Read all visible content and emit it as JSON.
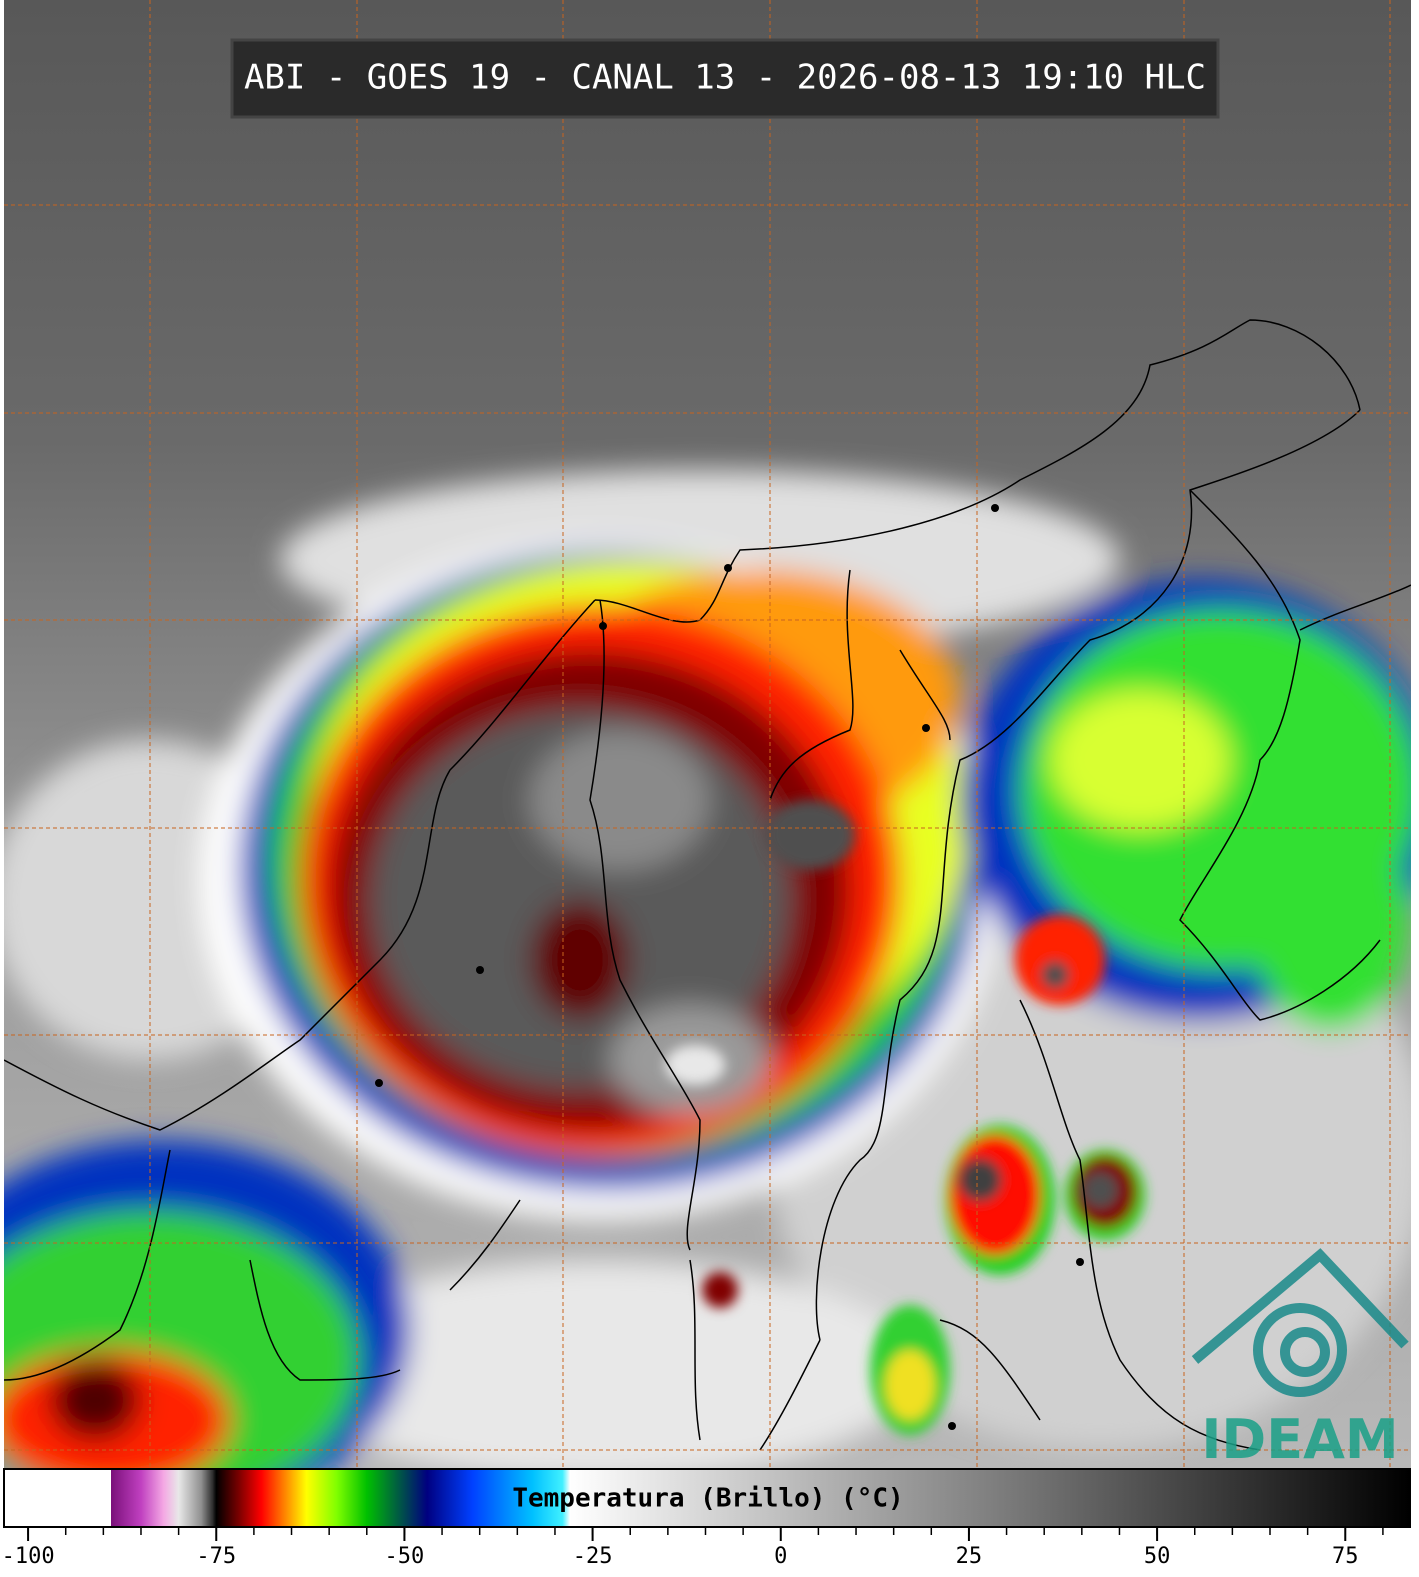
{
  "header": {
    "title": "ABI - GOES 19 - CANAL 13 - 2026-08-13 19:10 HLC"
  },
  "logo": {
    "text": "IDEAM"
  },
  "colorbar": {
    "label": "Temperatura (Brillo) (°C)",
    "lim": [
      -103.2,
      83.6
    ],
    "ticks": [
      -100,
      -75,
      -50,
      -25,
      0,
      25,
      50,
      75
    ],
    "minor_step": 5,
    "stops": [
      {
        "value": -103.2,
        "color": "#ffffff"
      },
      {
        "value": -89,
        "color": "#ffffff"
      },
      {
        "value": -89,
        "color": "#7a107a"
      },
      {
        "value": -85,
        "color": "#c040c0"
      },
      {
        "value": -82,
        "color": "#f4a8e4"
      },
      {
        "value": -80,
        "color": "#e8e8e8"
      },
      {
        "value": -77,
        "color": "#909090"
      },
      {
        "value": -75.5,
        "color": "#303030"
      },
      {
        "value": -75,
        "color": "#000000"
      },
      {
        "value": -72,
        "color": "#7a0000"
      },
      {
        "value": -69,
        "color": "#ff0000"
      },
      {
        "value": -66,
        "color": "#ff8000"
      },
      {
        "value": -63,
        "color": "#ffff00"
      },
      {
        "value": -59,
        "color": "#80ff00"
      },
      {
        "value": -55,
        "color": "#00c000"
      },
      {
        "value": -51,
        "color": "#006040"
      },
      {
        "value": -47,
        "color": "#000080"
      },
      {
        "value": -41,
        "color": "#0040ff"
      },
      {
        "value": -33,
        "color": "#00c0ff"
      },
      {
        "value": -29,
        "color": "#40f0ff"
      },
      {
        "value": -28,
        "color": "#ffffff"
      },
      {
        "value": 83.6,
        "color": "#000000"
      }
    ]
  }
}
